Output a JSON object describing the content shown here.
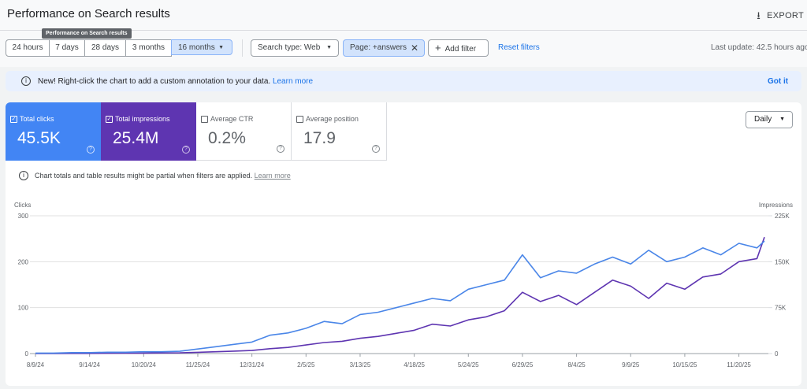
{
  "header": {
    "title": "Performance on Search results",
    "export": "EXPORT",
    "tooltip": "Performance on Search results"
  },
  "filters": {
    "ranges": [
      "24 hours",
      "7 days",
      "28 days",
      "3 months",
      "16 months"
    ],
    "search_type": "Search type: Web",
    "page_filter": "Page: +answers",
    "add_filter": "Add filter",
    "reset": "Reset filters",
    "last_update": "Last update: 42.5 hours ago"
  },
  "banner": {
    "text": "New! Right-click the chart to add a custom annotation to your data.",
    "link": "Learn more",
    "dismiss": "Got it"
  },
  "metrics": [
    {
      "label": "Total clicks",
      "value": "45.5K"
    },
    {
      "label": "Total impressions",
      "value": "25.4M"
    },
    {
      "label": "Average CTR",
      "value": "0.2%"
    },
    {
      "label": "Average position",
      "value": "17.9"
    }
  ],
  "granularity": "Daily",
  "note": {
    "text": "Chart totals and table results might be partial when filters are applied.",
    "link": "Learn more"
  },
  "chart_data": {
    "type": "line",
    "ylabel": "Clicks",
    "y2label": "Impressions",
    "x": [
      "8/9/24",
      "8/21/24",
      "9/2/24",
      "9/14/24",
      "9/26/24",
      "10/8/24",
      "10/20/24",
      "11/1/24",
      "11/13/24",
      "11/25/24",
      "12/7/24",
      "12/19/24",
      "12/31/24",
      "1/12/25",
      "1/24/25",
      "2/5/25",
      "2/17/25",
      "3/1/25",
      "3/13/25",
      "3/25/25",
      "4/6/25",
      "4/18/25",
      "4/30/25",
      "5/12/25",
      "5/24/25",
      "6/5/25",
      "6/17/25",
      "6/29/25",
      "7/11/25",
      "7/23/25",
      "8/4/25",
      "8/16/25",
      "8/28/25",
      "9/9/25",
      "9/21/25",
      "10/3/25",
      "10/15/25",
      "10/27/25",
      "11/8/25",
      "11/20/25",
      "12/2/25",
      "12/7/25"
    ],
    "series": [
      {
        "name": "Total clicks",
        "color": "#4a86e8",
        "values": [
          1,
          1,
          2,
          2,
          3,
          3,
          4,
          4,
          5,
          10,
          15,
          20,
          25,
          40,
          45,
          55,
          70,
          65,
          85,
          90,
          100,
          110,
          120,
          115,
          140,
          150,
          160,
          215,
          165,
          180,
          175,
          195,
          210,
          195,
          225,
          200,
          210,
          230,
          215,
          240,
          230,
          245
        ]
      },
      {
        "name": "Total impressions",
        "color": "#5e35b1",
        "axis": "y2",
        "values": [
          0,
          0,
          200,
          300,
          500,
          600,
          800,
          1000,
          1200,
          2000,
          3000,
          4000,
          5000,
          8000,
          10000,
          14000,
          18000,
          20000,
          25000,
          28000,
          33000,
          38000,
          48000,
          45000,
          55000,
          60000,
          70000,
          100000,
          85000,
          95000,
          80000,
          100000,
          120000,
          110000,
          90000,
          115000,
          105000,
          125000,
          130000,
          150000,
          155000,
          190000
        ]
      }
    ],
    "xlim": [
      "8/9/24",
      "12/7/25"
    ],
    "xticks": [
      "8/9/24",
      "9/14/24",
      "10/20/24",
      "11/25/24",
      "12/31/24",
      "2/5/25",
      "3/13/25",
      "4/18/25",
      "5/24/25",
      "6/29/25",
      "8/4/25",
      "9/9/25",
      "10/15/25",
      "11/20/25"
    ],
    "ylim": [
      0,
      300
    ],
    "yticks": [
      0,
      100,
      200,
      300
    ],
    "y2lim": [
      0,
      225000
    ],
    "y2ticks": [
      {
        "value": 0,
        "label": "0"
      },
      {
        "value": 75000,
        "label": "75K"
      },
      {
        "value": 150000,
        "label": "150K"
      },
      {
        "value": 225000,
        "label": "225K"
      }
    ],
    "grid": true
  }
}
